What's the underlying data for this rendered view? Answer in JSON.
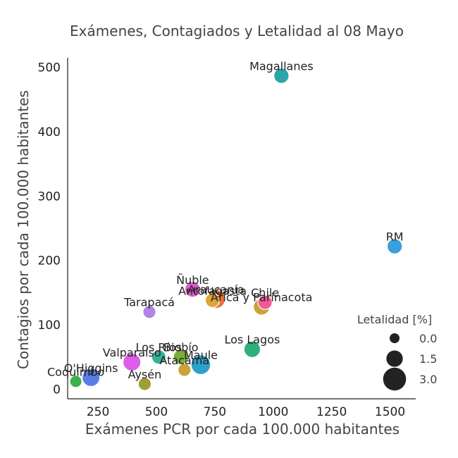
{
  "chart_data": {
    "type": "scatter",
    "title": "Exámenes, Contagiados y Letalidad al 08 Mayo",
    "xlabel": "Exámenes PCR por cada 100.000 habitantes",
    "ylabel": "Contagios por cada 100.000 habitantes",
    "xlim": [
      120,
      1610
    ],
    "ylim": [
      -15,
      515
    ],
    "xticks": [
      250,
      500,
      750,
      1000,
      1250,
      1500
    ],
    "yticks": [
      0,
      100,
      200,
      300,
      400,
      500
    ],
    "grid": false,
    "legend": {
      "title": "Letalidad [%]",
      "placement": "right",
      "values": [
        0.0,
        1.5,
        3.0
      ],
      "labels": [
        "0.0",
        "1.5",
        "3.0"
      ]
    },
    "points": [
      {
        "label": "Magallanes",
        "x": 1035,
        "y": 487,
        "letalidad": 1.2,
        "color": "#2aa5a8"
      },
      {
        "label": "RM",
        "x": 1520,
        "y": 222,
        "letalidad": 1.2,
        "color": "#3b9fdc"
      },
      {
        "label": "Ñuble",
        "x": 655,
        "y": 155,
        "letalidad": 1.3,
        "color": "#e25bd0"
      },
      {
        "label": "Araucanía",
        "x": 755,
        "y": 140,
        "letalidad": 2.0,
        "color": "#f07035"
      },
      {
        "label": "Antofagasta",
        "x": 740,
        "y": 138,
        "letalidad": 1.0,
        "color": "#e0a43a"
      },
      {
        "label": "Chile",
        "x": 965,
        "y": 135,
        "letalidad": 1.0,
        "color": "#f25a95"
      },
      {
        "label": "Arica y Parinacota",
        "x": 950,
        "y": 128,
        "letalidad": 1.5,
        "color": "#c9a33a"
      },
      {
        "label": "Tarapacá",
        "x": 470,
        "y": 120,
        "letalidad": 0.7,
        "color": "#b184e8"
      },
      {
        "label": "Los Lagos",
        "x": 910,
        "y": 62,
        "letalidad": 1.5,
        "color": "#2fb07a"
      },
      {
        "label": "Los Ríos",
        "x": 510,
        "y": 50,
        "letalidad": 1.0,
        "color": "#3aaf9a"
      },
      {
        "label": "Biobío",
        "x": 605,
        "y": 50,
        "letalidad": 1.2,
        "color": "#7aad3a"
      },
      {
        "label": "Maule",
        "x": 690,
        "y": 38,
        "letalidad": 2.2,
        "color": "#2fa0c9"
      },
      {
        "label": "Valparaíso",
        "x": 395,
        "y": 42,
        "letalidad": 1.8,
        "color": "#dd5ce8"
      },
      {
        "label": "Atacama",
        "x": 620,
        "y": 30,
        "letalidad": 0.7,
        "color": "#c9a33a"
      },
      {
        "label": "O'Higgins",
        "x": 220,
        "y": 18,
        "letalidad": 1.8,
        "color": "#5b7de8"
      },
      {
        "label": "Aysén",
        "x": 450,
        "y": 8,
        "letalidad": 0.7,
        "color": "#9da035"
      },
      {
        "label": "Coquimbo",
        "x": 155,
        "y": 12,
        "letalidad": 0.5,
        "color": "#3bb24a"
      }
    ]
  }
}
